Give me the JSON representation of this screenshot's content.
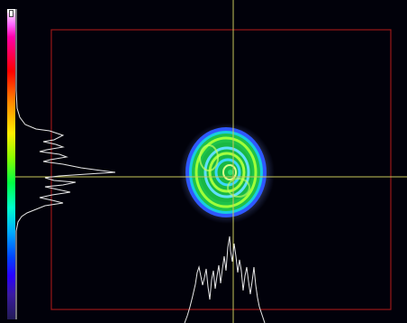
{
  "viewer": {
    "colormap": "rainbow",
    "colors": {
      "background": "#01010a",
      "roi_border": "#9a1818",
      "crosshair": "#c8c85a",
      "profile_trace": "#e8e8e8",
      "beam_outer": "#2255ff",
      "beam_ring": "#22dd44",
      "beam_bright": "#aaff22"
    },
    "icons": {
      "crosshair": "crosshair-icon",
      "roi": "roi-rectangle"
    }
  }
}
